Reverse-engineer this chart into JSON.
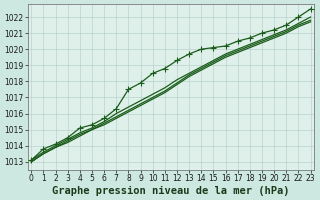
{
  "title": "Graphe pression niveau de la mer (hPa)",
  "bg_color": "#cce8e0",
  "plot_bg_color": "#dff0ea",
  "grid_color": "#b8d4cc",
  "line_color": "#1a5c1a",
  "xlim": [
    -0.3,
    23.3
  ],
  "ylim": [
    1012.5,
    1022.8
  ],
  "yticks": [
    1013,
    1014,
    1015,
    1016,
    1017,
    1018,
    1019,
    1020,
    1021,
    1022
  ],
  "xticks": [
    0,
    1,
    2,
    3,
    4,
    5,
    6,
    7,
    8,
    9,
    10,
    11,
    12,
    13,
    14,
    15,
    16,
    17,
    18,
    19,
    20,
    21,
    22,
    23
  ],
  "lines": [
    [
      1013.1,
      1013.8,
      1014.1,
      1014.5,
      1015.1,
      1015.3,
      1015.7,
      1016.3,
      1017.5,
      1017.9,
      1018.5,
      1018.8,
      1019.3,
      1019.7,
      1020.0,
      1020.1,
      1020.2,
      1020.5,
      1020.7,
      1021.0,
      1021.2,
      1021.5,
      1022.0,
      1022.5
    ],
    [
      1013.0,
      1013.5,
      1013.9,
      1014.2,
      1014.6,
      1015.0,
      1015.3,
      1015.7,
      1016.1,
      1016.5,
      1016.9,
      1017.3,
      1017.8,
      1018.3,
      1018.7,
      1019.1,
      1019.5,
      1019.8,
      1020.1,
      1020.4,
      1020.7,
      1021.0,
      1021.4,
      1021.7
    ],
    [
      1013.0,
      1013.5,
      1013.9,
      1014.3,
      1014.7,
      1015.0,
      1015.4,
      1015.8,
      1016.2,
      1016.6,
      1017.0,
      1017.4,
      1017.9,
      1018.4,
      1018.8,
      1019.2,
      1019.6,
      1019.9,
      1020.2,
      1020.5,
      1020.8,
      1021.1,
      1021.5,
      1021.8
    ],
    [
      1013.1,
      1013.6,
      1014.0,
      1014.4,
      1014.8,
      1015.1,
      1015.5,
      1016.0,
      1016.4,
      1016.8,
      1017.2,
      1017.6,
      1018.1,
      1018.5,
      1018.9,
      1019.3,
      1019.7,
      1020.0,
      1020.3,
      1020.6,
      1020.9,
      1021.2,
      1021.6,
      1022.0
    ]
  ],
  "marker_line_idx": 0,
  "marker": "+",
  "marker_size": 4,
  "linewidth": 0.9,
  "title_fontsize": 7.5,
  "tick_fontsize": 5.5
}
